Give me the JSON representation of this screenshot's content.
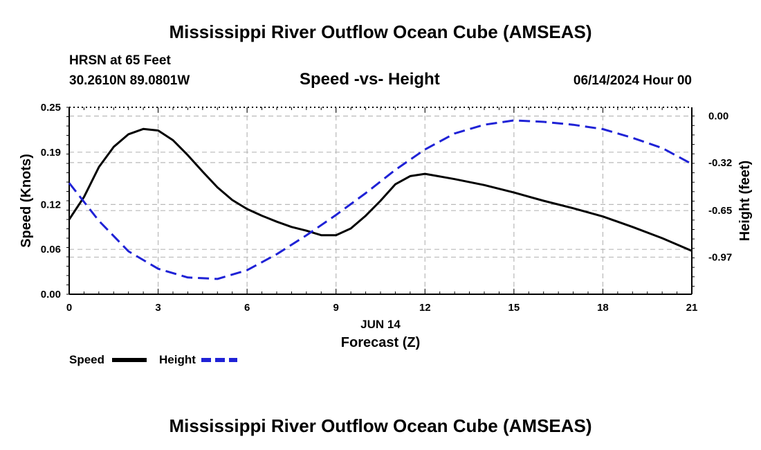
{
  "header": {
    "title": "Mississippi River Outflow Ocean Cube (AMSEAS)",
    "station": "HRSN at 65 Feet",
    "coords": "30.2610N  89.0801W",
    "subtitle": "Speed -vs- Height",
    "date": "06/14/2024 Hour 00"
  },
  "footer": {
    "title": "Mississippi River Outflow Ocean Cube (AMSEAS)"
  },
  "colors": {
    "speed": "#000000",
    "height": "#1f22d6",
    "grid": "#b8b8b8"
  },
  "chart_data": {
    "type": "line",
    "title": "Speed -vs- Height",
    "xlabel": "Forecast (Z)",
    "xlabel_date": "JUN 14",
    "ylabel": "Speed (Knots)",
    "ylabel_right": "Height (feet)",
    "xlim": [
      0,
      21
    ],
    "ylim": [
      0,
      0.25
    ],
    "ylim_right": [
      -1.225,
      0.06
    ],
    "x_ticks": [
      0,
      3,
      6,
      9,
      12,
      15,
      18,
      21
    ],
    "x_tick_labels": [
      "0",
      "3",
      "6",
      "9",
      "12",
      "15",
      "18",
      "21"
    ],
    "y_ticks": [
      0.0,
      0.06,
      0.12,
      0.19,
      0.25
    ],
    "y_tick_labels": [
      "0.00",
      "0.06",
      "0.12",
      "0.19",
      "0.25"
    ],
    "y_ticks_right": [
      0.0,
      -0.32,
      -0.65,
      -0.97
    ],
    "y_tick_labels_right": [
      "0.00",
      "-0.32",
      "-0.65",
      "-0.97"
    ],
    "grid": true,
    "legend": "bottom-left",
    "series": [
      {
        "name": "Speed",
        "axis": "left",
        "style": "solid",
        "x": [
          0,
          0.5,
          1,
          1.5,
          2,
          2.5,
          3,
          3.5,
          4,
          4.5,
          5,
          5.5,
          6,
          6.5,
          7,
          7.5,
          8,
          8.5,
          9,
          9.5,
          10,
          10.5,
          11,
          11.5,
          12,
          13,
          14,
          15,
          16,
          17,
          18,
          19,
          20,
          21
        ],
        "values": [
          0.1,
          0.13,
          0.17,
          0.197,
          0.214,
          0.221,
          0.219,
          0.206,
          0.186,
          0.164,
          0.143,
          0.126,
          0.114,
          0.105,
          0.097,
          0.09,
          0.085,
          0.079,
          0.079,
          0.088,
          0.105,
          0.125,
          0.147,
          0.158,
          0.161,
          0.154,
          0.146,
          0.136,
          0.125,
          0.115,
          0.104,
          0.09,
          0.075,
          0.058
        ]
      },
      {
        "name": "Height",
        "axis": "right",
        "style": "dashed",
        "x": [
          0,
          1,
          2,
          3,
          4,
          5,
          6,
          7,
          8,
          9,
          10,
          11,
          12,
          13,
          14,
          15,
          16,
          17,
          18,
          19,
          20,
          21
        ],
        "values": [
          -0.46,
          -0.72,
          -0.93,
          -1.05,
          -1.11,
          -1.12,
          -1.06,
          -0.95,
          -0.82,
          -0.68,
          -0.53,
          -0.37,
          -0.23,
          -0.12,
          -0.06,
          -0.03,
          -0.04,
          -0.06,
          -0.09,
          -0.15,
          -0.22,
          -0.33
        ]
      }
    ]
  }
}
